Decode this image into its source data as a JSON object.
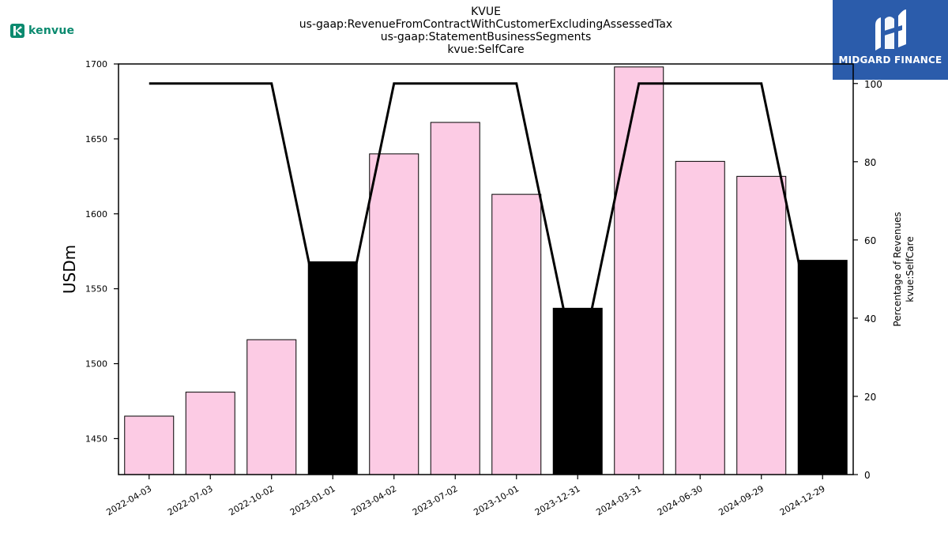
{
  "header": {
    "title_lines": [
      "KVUE",
      "us-gaap:RevenueFromContractWithCustomerExcludingAssessedTax",
      "us-gaap:StatementBusinessSegments",
      "kvue:SelfCare"
    ]
  },
  "logos": {
    "left_text": "kenvue",
    "left_icon": "kenvue-k-icon",
    "right_text": "MIDGARD FINANCE",
    "right_icon": "midgard-m-icon"
  },
  "colors": {
    "bar_pink": "#fccbe4",
    "bar_black": "#000000",
    "line": "#000000",
    "brand_green": "#0b8a6f",
    "brand_blue": "#2b5cab"
  },
  "chart_data": {
    "type": "bar",
    "categories": [
      "2022-04-03",
      "2022-07-03",
      "2022-10-02",
      "2023-01-01",
      "2023-04-02",
      "2023-07-02",
      "2023-10-01",
      "2023-12-31",
      "2024-03-31",
      "2024-06-30",
      "2024-09-29",
      "2024-12-29"
    ],
    "values": [
      1465,
      1481,
      1516,
      1568,
      1640,
      1661,
      1613,
      1537,
      1698,
      1635,
      1625,
      1569
    ],
    "bar_colors": [
      "pink",
      "pink",
      "pink",
      "black",
      "pink",
      "pink",
      "pink",
      "black",
      "pink",
      "pink",
      "pink",
      "black"
    ],
    "ylabel": "USDm",
    "ylim": [
      1426,
      1700
    ],
    "yticks": [
      1450,
      1500,
      1550,
      1600,
      1650,
      1700
    ],
    "secondary": {
      "type": "line",
      "label_lines": [
        "Percentage of Revenues",
        "kvue:SelfCare"
      ],
      "values": [
        100,
        100,
        100,
        25,
        100,
        100,
        100,
        25,
        100,
        100,
        100,
        25
      ],
      "ylim": [
        0,
        105
      ],
      "yticks": [
        0,
        20,
        40,
        60,
        80,
        100
      ]
    },
    "grid": false
  }
}
